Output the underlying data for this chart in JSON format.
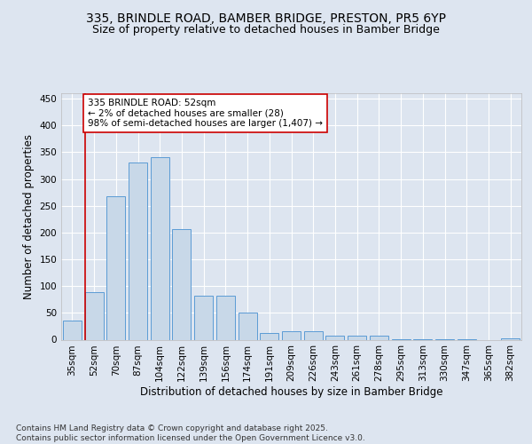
{
  "title1": "335, BRINDLE ROAD, BAMBER BRIDGE, PRESTON, PR5 6YP",
  "title2": "Size of property relative to detached houses in Bamber Bridge",
  "xlabel": "Distribution of detached houses by size in Bamber Bridge",
  "ylabel": "Number of detached properties",
  "categories": [
    "35sqm",
    "52sqm",
    "70sqm",
    "87sqm",
    "104sqm",
    "122sqm",
    "139sqm",
    "156sqm",
    "174sqm",
    "191sqm",
    "209sqm",
    "226sqm",
    "243sqm",
    "261sqm",
    "278sqm",
    "295sqm",
    "313sqm",
    "330sqm",
    "347sqm",
    "365sqm",
    "382sqm"
  ],
  "values": [
    35,
    88,
    268,
    330,
    340,
    206,
    82,
    82,
    50,
    12,
    15,
    15,
    7,
    7,
    8,
    1,
    1,
    1,
    1,
    0,
    2
  ],
  "bar_color": "#c8d8e8",
  "bar_edge_color": "#5b9bd5",
  "highlight_index": 1,
  "highlight_line_color": "#cc0000",
  "annotation_text": "335 BRINDLE ROAD: 52sqm\n← 2% of detached houses are smaller (28)\n98% of semi-detached houses are larger (1,407) →",
  "annotation_box_color": "#ffffff",
  "annotation_box_edge": "#cc0000",
  "ylim": [
    0,
    460
  ],
  "yticks": [
    0,
    50,
    100,
    150,
    200,
    250,
    300,
    350,
    400,
    450
  ],
  "footer_text": "Contains HM Land Registry data © Crown copyright and database right 2025.\nContains public sector information licensed under the Open Government Licence v3.0.",
  "bg_color": "#dde5f0",
  "plot_bg_color": "#dde5f0",
  "grid_color": "#ffffff",
  "title1_fontsize": 10,
  "title2_fontsize": 9,
  "xlabel_fontsize": 8.5,
  "ylabel_fontsize": 8.5,
  "tick_fontsize": 7.5,
  "annotation_fontsize": 7.5,
  "footer_fontsize": 6.5
}
